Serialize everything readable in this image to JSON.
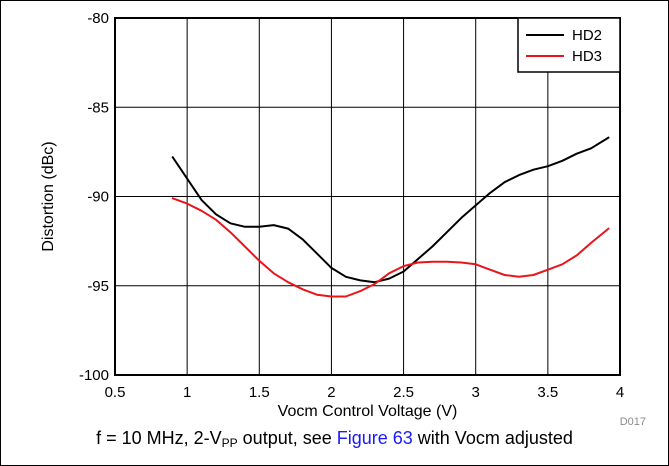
{
  "chart_data": {
    "type": "line",
    "xlabel": "Vocm Control Voltage (V)",
    "ylabel": "Distortion (dBc)",
    "xlim": [
      0.5,
      4
    ],
    "ylim": [
      -100,
      -80
    ],
    "x_ticks": [
      "0.5",
      "1",
      "1.5",
      "2",
      "2.5",
      "3",
      "3.5",
      "4"
    ],
    "y_ticks": [
      "-80",
      "-85",
      "-90",
      "-95",
      "-100"
    ],
    "grid": true,
    "legend_position": "top-right",
    "figure_id": "D017",
    "series": [
      {
        "name": "HD2",
        "color": "#000000",
        "points": [
          [
            0.9,
            -87.8
          ],
          [
            1.0,
            -89.0
          ],
          [
            1.1,
            -90.2
          ],
          [
            1.2,
            -91.0
          ],
          [
            1.3,
            -91.5
          ],
          [
            1.4,
            -91.7
          ],
          [
            1.5,
            -91.7
          ],
          [
            1.6,
            -91.6
          ],
          [
            1.7,
            -91.8
          ],
          [
            1.8,
            -92.4
          ],
          [
            1.9,
            -93.2
          ],
          [
            2.0,
            -94.0
          ],
          [
            2.1,
            -94.5
          ],
          [
            2.2,
            -94.7
          ],
          [
            2.3,
            -94.8
          ],
          [
            2.4,
            -94.6
          ],
          [
            2.5,
            -94.2
          ],
          [
            2.6,
            -93.5
          ],
          [
            2.7,
            -92.8
          ],
          [
            2.8,
            -92.0
          ],
          [
            2.9,
            -91.2
          ],
          [
            3.0,
            -90.5
          ],
          [
            3.1,
            -89.8
          ],
          [
            3.2,
            -89.2
          ],
          [
            3.3,
            -88.8
          ],
          [
            3.4,
            -88.5
          ],
          [
            3.5,
            -88.3
          ],
          [
            3.6,
            -88.0
          ],
          [
            3.7,
            -87.6
          ],
          [
            3.8,
            -87.3
          ],
          [
            3.92,
            -86.7
          ]
        ]
      },
      {
        "name": "HD3",
        "color": "#e8161b",
        "points": [
          [
            0.9,
            -90.1
          ],
          [
            1.0,
            -90.4
          ],
          [
            1.1,
            -90.8
          ],
          [
            1.2,
            -91.3
          ],
          [
            1.3,
            -92.0
          ],
          [
            1.4,
            -92.8
          ],
          [
            1.5,
            -93.6
          ],
          [
            1.6,
            -94.3
          ],
          [
            1.7,
            -94.8
          ],
          [
            1.8,
            -95.2
          ],
          [
            1.9,
            -95.5
          ],
          [
            2.0,
            -95.6
          ],
          [
            2.1,
            -95.6
          ],
          [
            2.2,
            -95.3
          ],
          [
            2.3,
            -94.9
          ],
          [
            2.4,
            -94.3
          ],
          [
            2.5,
            -93.9
          ],
          [
            2.6,
            -93.7
          ],
          [
            2.7,
            -93.65
          ],
          [
            2.8,
            -93.65
          ],
          [
            2.9,
            -93.7
          ],
          [
            3.0,
            -93.8
          ],
          [
            3.1,
            -94.1
          ],
          [
            3.2,
            -94.4
          ],
          [
            3.3,
            -94.5
          ],
          [
            3.4,
            -94.4
          ],
          [
            3.5,
            -94.1
          ],
          [
            3.6,
            -93.8
          ],
          [
            3.7,
            -93.3
          ],
          [
            3.8,
            -92.6
          ],
          [
            3.92,
            -91.8
          ]
        ]
      }
    ]
  },
  "caption": {
    "prefix": "f = 10 MHz, 2-V",
    "sub": "PP",
    "middle": " output, see ",
    "link": "Figure 63",
    "suffix": " with Vocm adjusted"
  }
}
